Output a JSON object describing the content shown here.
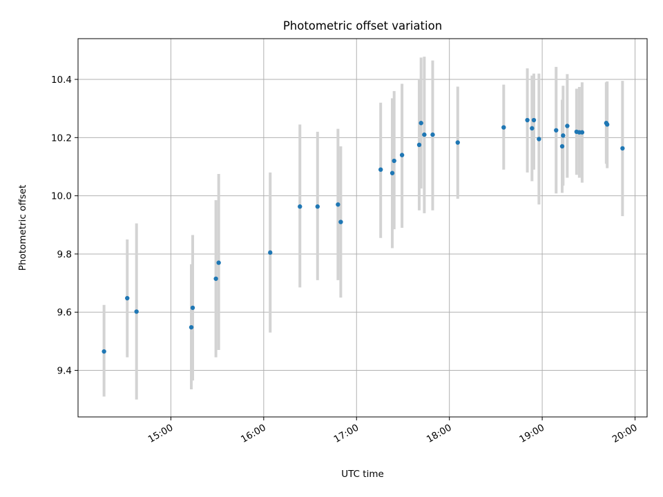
{
  "chart_data": {
    "type": "scatter",
    "title": "Photometric offset variation",
    "xlabel": "UTC time",
    "ylabel": "Photometric offset",
    "x_format": "HH:MM (hours)",
    "x_ticks": [
      15,
      16,
      17,
      18,
      19,
      20
    ],
    "x_tick_labels": [
      "15:00",
      "16:00",
      "17:00",
      "18:00",
      "19:00",
      "20:00"
    ],
    "y_ticks": [
      9.4,
      9.6,
      9.8,
      10.0,
      10.2,
      10.4
    ],
    "y_tick_labels": [
      "9.4",
      "9.6",
      "9.8",
      "10.0",
      "10.2",
      "10.4"
    ],
    "xlim": [
      14.0,
      20.13
    ],
    "ylim": [
      9.24,
      10.54
    ],
    "grid": true,
    "colors": {
      "points": "#1f77b4",
      "errorbars": "#d3d3d3",
      "grid": "#b0b0b0",
      "axes": "#000000"
    },
    "points": [
      {
        "x": 14.28,
        "y": 9.465,
        "ylow": 9.31,
        "yhigh": 9.625
      },
      {
        "x": 14.53,
        "y": 9.648,
        "ylow": 9.445,
        "yhigh": 9.85
      },
      {
        "x": 14.63,
        "y": 9.602,
        "ylow": 9.3,
        "yhigh": 9.905
      },
      {
        "x": 15.22,
        "y": 9.548,
        "ylow": 9.335,
        "yhigh": 9.765
      },
      {
        "x": 15.235,
        "y": 9.615,
        "ylow": 9.365,
        "yhigh": 9.865
      },
      {
        "x": 15.485,
        "y": 9.715,
        "ylow": 9.445,
        "yhigh": 9.985
      },
      {
        "x": 15.515,
        "y": 9.77,
        "ylow": 9.47,
        "yhigh": 10.075
      },
      {
        "x": 16.07,
        "y": 9.805,
        "ylow": 9.53,
        "yhigh": 10.08
      },
      {
        "x": 16.39,
        "y": 9.963,
        "ylow": 9.685,
        "yhigh": 10.245
      },
      {
        "x": 16.58,
        "y": 9.963,
        "ylow": 9.71,
        "yhigh": 10.22
      },
      {
        "x": 16.8,
        "y": 9.97,
        "ylow": 9.71,
        "yhigh": 10.23
      },
      {
        "x": 16.83,
        "y": 9.91,
        "ylow": 9.65,
        "yhigh": 10.17
      },
      {
        "x": 17.26,
        "y": 10.09,
        "ylow": 9.855,
        "yhigh": 10.32
      },
      {
        "x": 17.385,
        "y": 10.078,
        "ylow": 9.82,
        "yhigh": 10.335
      },
      {
        "x": 17.405,
        "y": 10.12,
        "ylow": 9.885,
        "yhigh": 10.36
      },
      {
        "x": 17.49,
        "y": 10.14,
        "ylow": 9.89,
        "yhigh": 10.385
      },
      {
        "x": 17.675,
        "y": 10.175,
        "ylow": 9.95,
        "yhigh": 10.4
      },
      {
        "x": 17.695,
        "y": 10.25,
        "ylow": 10.025,
        "yhigh": 10.475
      },
      {
        "x": 17.73,
        "y": 10.21,
        "ylow": 9.94,
        "yhigh": 10.478
      },
      {
        "x": 17.82,
        "y": 10.21,
        "ylow": 9.95,
        "yhigh": 10.465
      },
      {
        "x": 18.09,
        "y": 10.183,
        "ylow": 9.99,
        "yhigh": 10.375
      },
      {
        "x": 18.585,
        "y": 10.235,
        "ylow": 10.09,
        "yhigh": 10.382
      },
      {
        "x": 18.84,
        "y": 10.26,
        "ylow": 10.08,
        "yhigh": 10.438
      },
      {
        "x": 18.89,
        "y": 10.232,
        "ylow": 10.05,
        "yhigh": 10.413
      },
      {
        "x": 18.91,
        "y": 10.26,
        "ylow": 10.09,
        "yhigh": 10.42
      },
      {
        "x": 18.965,
        "y": 10.195,
        "ylow": 9.97,
        "yhigh": 10.42
      },
      {
        "x": 19.15,
        "y": 10.225,
        "ylow": 10.008,
        "yhigh": 10.443
      },
      {
        "x": 19.215,
        "y": 10.17,
        "ylow": 10.01,
        "yhigh": 10.33
      },
      {
        "x": 19.225,
        "y": 10.207,
        "ylow": 10.035,
        "yhigh": 10.378
      },
      {
        "x": 19.27,
        "y": 10.24,
        "ylow": 10.062,
        "yhigh": 10.418
      },
      {
        "x": 19.37,
        "y": 10.22,
        "ylow": 10.072,
        "yhigh": 10.368
      },
      {
        "x": 19.4,
        "y": 10.218,
        "ylow": 10.062,
        "yhigh": 10.374
      },
      {
        "x": 19.43,
        "y": 10.218,
        "ylow": 10.045,
        "yhigh": 10.39
      },
      {
        "x": 19.69,
        "y": 10.25,
        "ylow": 10.11,
        "yhigh": 10.39
      },
      {
        "x": 19.7,
        "y": 10.245,
        "ylow": 10.095,
        "yhigh": 10.393
      },
      {
        "x": 19.865,
        "y": 10.163,
        "ylow": 9.93,
        "yhigh": 10.395
      }
    ]
  }
}
